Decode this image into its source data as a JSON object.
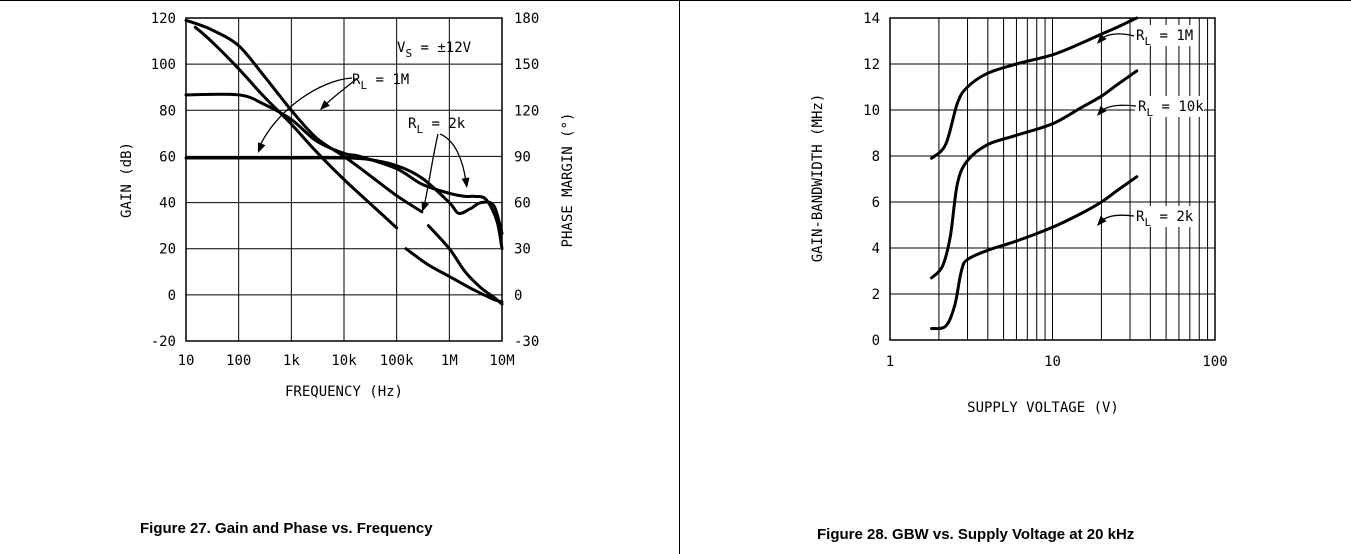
{
  "figures": [
    {
      "caption": "Figure 27. Gain and Phase vs. Frequency"
    },
    {
      "caption": "Figure 28. GBW vs. Supply Voltage at 20 kHz"
    }
  ],
  "chart_data": [
    {
      "type": "line",
      "title": "",
      "xlabel": "FREQUENCY (Hz)",
      "ylabel": "GAIN (dB)",
      "y2label": "PHASE MARGIN (°)",
      "x_scale": "log",
      "xlim": [
        10,
        10000000
      ],
      "ylim": [
        -20,
        120
      ],
      "y2lim": [
        -30,
        180
      ],
      "x_ticks": [
        "10",
        "100",
        "1k",
        "10k",
        "100k",
        "1M",
        "10M"
      ],
      "y_ticks": [
        "-20",
        "0",
        "20",
        "40",
        "60",
        "80",
        "100",
        "120"
      ],
      "y2_ticks": [
        "-30",
        "0",
        "30",
        "60",
        "90",
        "120",
        "150",
        "180"
      ],
      "grid": true,
      "annotations": [
        {
          "text": "V_S = ±12V",
          "parts": [
            "V",
            "S",
            " = ±12V"
          ]
        },
        {
          "text": "R_L = 1M",
          "parts": [
            "R",
            "L",
            " = 1M"
          ]
        },
        {
          "text": "R_L = 2k",
          "parts": [
            "R",
            "L",
            " = 2k"
          ]
        }
      ],
      "series": [
        {
          "x": [
            10,
            30,
            100,
            300,
            1000,
            3000,
            10000,
            30000,
            100000,
            300000
          ],
          "y": [
            119,
            115,
            108,
            95,
            80,
            68,
            60,
            52,
            43,
            36
          ]
        },
        {
          "x": [
            400000,
            1000000,
            2000000,
            4000000,
            7000000,
            10000000
          ],
          "y": [
            30,
            20,
            10,
            3,
            -1,
            -4
          ]
        },
        {
          "x": [
            15,
            30,
            100,
            300,
            1000,
            3000,
            10000,
            30000,
            100000
          ],
          "y": [
            116,
            110,
            98,
            86,
            74,
            62,
            50,
            40,
            29
          ]
        },
        {
          "x": [
            150000,
            400000,
            1000000,
            3000000,
            7000000,
            10000000
          ],
          "y": [
            20,
            13,
            8,
            2,
            -2,
            -3
          ]
        },
        {
          "x": [
            10,
            100,
            300,
            1000,
            3000,
            10000,
            20000,
            100000,
            300000,
            1000000,
            2000000,
            3000000,
            5000000,
            8000000,
            10000000
          ],
          "y2": [
            130,
            130,
            124,
            114,
            100,
            92,
            90,
            82,
            72,
            66,
            64,
            64,
            62,
            48,
            30
          ]
        },
        {
          "x": [
            10,
            100,
            1000,
            10000,
            30000,
            100000,
            300000,
            1000000,
            1500000,
            2500000,
            4000000,
            7000000,
            10000000
          ],
          "y2": [
            89,
            89,
            89,
            89,
            88,
            84,
            76,
            60,
            53,
            56,
            60,
            58,
            40
          ]
        }
      ]
    },
    {
      "type": "line",
      "title": "",
      "xlabel": "SUPPLY VOLTAGE (V)",
      "ylabel": "GAIN-BANDWIDTH (MHz)",
      "x_scale": "log",
      "xlim": [
        1,
        100
      ],
      "ylim": [
        0,
        14
      ],
      "x_ticks": [
        "1",
        "10",
        "100"
      ],
      "y_ticks": [
        "0",
        "2",
        "4",
        "6",
        "8",
        "10",
        "12",
        "14"
      ],
      "grid": true,
      "series": [
        {
          "name": "R_L = 1M",
          "label_parts": [
            "R",
            "L",
            " = 1M"
          ],
          "x": [
            1.8,
            2.2,
            2.6,
            3.0,
            4.0,
            6.0,
            10,
            15,
            20,
            25,
            33
          ],
          "y": [
            7.9,
            8.5,
            10.3,
            11.0,
            11.6,
            12.0,
            12.4,
            12.9,
            13.3,
            13.6,
            14.0
          ]
        },
        {
          "name": "R_L = 10k",
          "label_parts": [
            "R",
            "L",
            " = 10k"
          ],
          "x": [
            1.8,
            2.1,
            2.35,
            2.6,
            3.0,
            4.0,
            6.0,
            10,
            15,
            20,
            25,
            33
          ],
          "y": [
            2.7,
            3.2,
            4.5,
            6.8,
            7.8,
            8.5,
            8.9,
            9.4,
            10.1,
            10.6,
            11.1,
            11.7
          ]
        },
        {
          "name": "R_L = 2k",
          "label_parts": [
            "R",
            "L",
            " = 2k"
          ],
          "x": [
            1.8,
            2.2,
            2.5,
            2.75,
            3.0,
            4.0,
            6.0,
            10,
            15,
            20,
            25,
            33
          ],
          "y": [
            0.5,
            0.6,
            1.5,
            3.0,
            3.5,
            3.9,
            4.3,
            4.9,
            5.5,
            6.0,
            6.5,
            7.1
          ]
        }
      ]
    }
  ]
}
